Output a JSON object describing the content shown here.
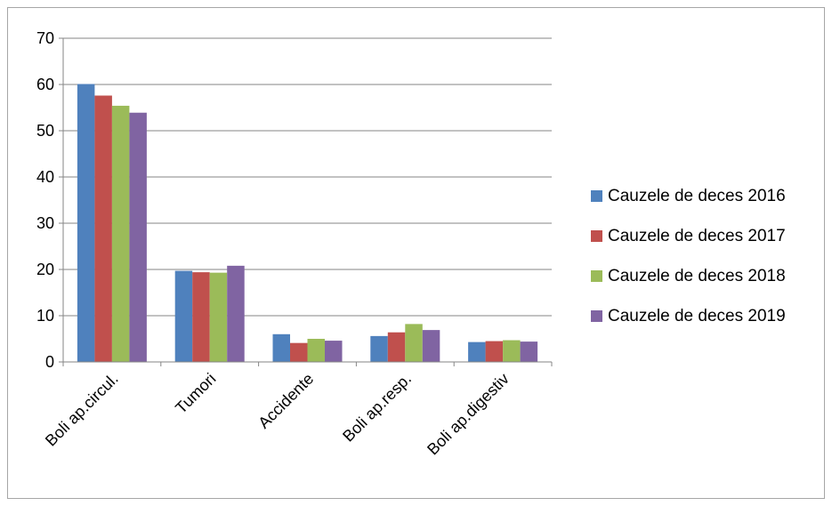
{
  "chart_data": {
    "type": "bar",
    "title": "",
    "xlabel": "",
    "ylabel": "",
    "categories": [
      "Boli ap.circul.",
      "Tumori",
      "Accidente",
      "Boli ap.resp.",
      "Boli ap.digestiv"
    ],
    "series": [
      {
        "name": "Cauzele de deces 2016",
        "color": "#4f81bd",
        "values": [
          60.1,
          19.7,
          6.0,
          5.6,
          4.3
        ]
      },
      {
        "name": "Cauzele de deces 2017",
        "color": "#c0504d",
        "values": [
          57.6,
          19.4,
          4.1,
          6.4,
          4.5
        ]
      },
      {
        "name": "Cauzele de deces 2018",
        "color": "#9bbb59",
        "values": [
          55.4,
          19.3,
          5.0,
          8.2,
          4.7
        ]
      },
      {
        "name": "Cauzele de deces 2019",
        "color": "#8064a2",
        "values": [
          53.9,
          20.8,
          4.6,
          6.9,
          4.4
        ]
      }
    ],
    "ylim": [
      0,
      70
    ],
    "yticks": [
      0,
      10,
      20,
      30,
      40,
      50,
      60,
      70
    ],
    "grid": true,
    "legend_position": "right"
  }
}
